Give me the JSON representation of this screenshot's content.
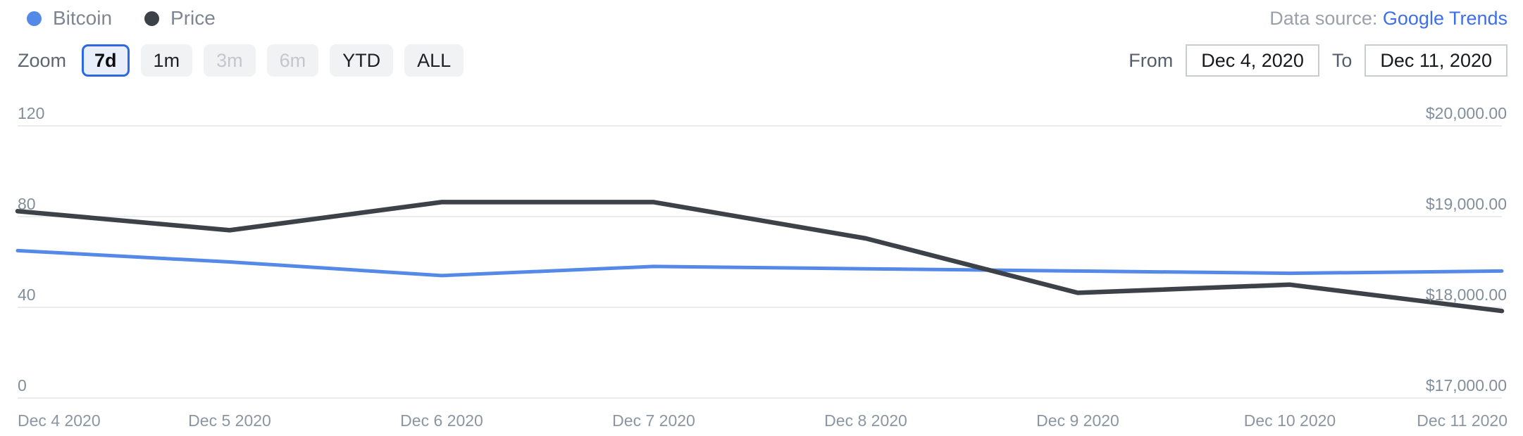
{
  "legend": {
    "items": [
      {
        "label": "Bitcoin",
        "color": "#5489e8"
      },
      {
        "label": "Price",
        "color": "#3d4248"
      }
    ]
  },
  "data_source": {
    "label": "Data source:",
    "link": "Google Trends",
    "link_color": "#3d6ef0"
  },
  "toolbar": {
    "zoom_label": "Zoom",
    "buttons": [
      {
        "label": "7d",
        "state": "active"
      },
      {
        "label": "1m",
        "state": "default"
      },
      {
        "label": "3m",
        "state": "disabled"
      },
      {
        "label": "6m",
        "state": "disabled"
      },
      {
        "label": "YTD",
        "state": "default"
      },
      {
        "label": "ALL",
        "state": "default"
      }
    ],
    "from_label": "From",
    "from_value": "Dec 4, 2020",
    "to_label": "To",
    "to_value": "Dec 11, 2020"
  },
  "chart_data": {
    "type": "line",
    "x": [
      "Dec 4 2020",
      "Dec 5 2020",
      "Dec 6 2020",
      "Dec 7 2020",
      "Dec 8 2020",
      "Dec 9 2020",
      "Dec 10 2020",
      "Dec 11 2020"
    ],
    "series": [
      {
        "name": "Bitcoin",
        "axis": "left",
        "color": "#5489e8",
        "values": [
          65,
          60,
          54,
          58,
          57,
          56,
          55,
          56
        ]
      },
      {
        "name": "Price",
        "axis": "right",
        "color": "#3d4248",
        "values": [
          19060,
          18850,
          19160,
          19160,
          18760,
          18160,
          18250,
          17960
        ]
      }
    ],
    "left_axis": {
      "range": [
        0,
        120
      ],
      "ticks": [
        0,
        40,
        80,
        120
      ],
      "tick_labels": [
        "0",
        "40",
        "80",
        "120"
      ]
    },
    "right_axis": {
      "range": [
        17000,
        20000
      ],
      "ticks": [
        17000,
        18000,
        19000,
        20000
      ],
      "tick_labels": [
        "$17,000.00",
        "$18,000.00",
        "$19,000.00",
        "$20,000.00"
      ]
    },
    "grid": true,
    "legend_position": "top-left",
    "gridline_color": "#e9ebed"
  }
}
